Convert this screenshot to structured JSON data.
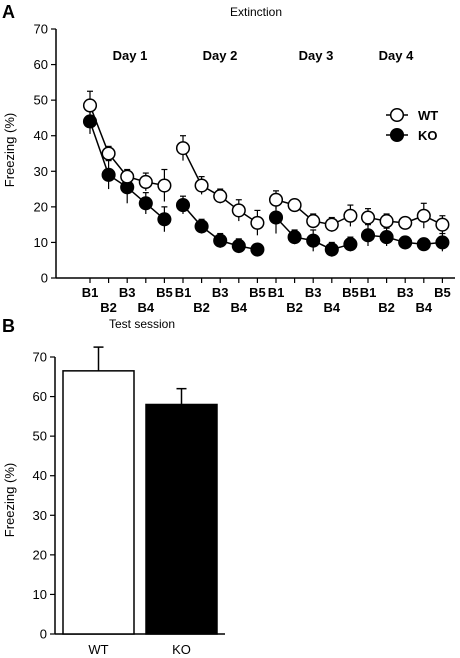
{
  "chart_data": [
    {
      "panel": "A",
      "type": "line",
      "title": "Extinction",
      "ylabel": "Freezing (%)",
      "ylim": [
        0,
        70
      ],
      "yticks": [
        0,
        10,
        20,
        30,
        40,
        50,
        60,
        70
      ],
      "days": [
        {
          "label": "Day 1",
          "blocks": [
            "B1",
            "B2",
            "B3",
            "B4",
            "B5"
          ]
        },
        {
          "label": "Day 2",
          "blocks": [
            "B1",
            "B2",
            "B3",
            "B4",
            "B5"
          ]
        },
        {
          "label": "Day 3",
          "blocks": [
            "B1",
            "B2",
            "B3",
            "B4",
            "B5"
          ]
        },
        {
          "label": "Day 4",
          "blocks": [
            "B1",
            "B2",
            "B3",
            "B4",
            "B5"
          ]
        }
      ],
      "legend_position": "right",
      "series": [
        {
          "name": "WT",
          "marker": "open-circle",
          "values": [
            [
              48.5,
              35,
              28.5,
              27,
              26
            ],
            [
              36.5,
              26,
              23,
              19,
              15.5
            ],
            [
              22,
              20.5,
              16,
              15,
              17.5
            ],
            [
              17,
              16,
              15.5,
              17.5,
              15
            ]
          ],
          "errors": [
            [
              4,
              2,
              2,
              2.5,
              4.5
            ],
            [
              3.5,
              2.5,
              2,
              3,
              3.5
            ],
            [
              2.5,
              1.5,
              2,
              2,
              3
            ],
            [
              2.5,
              2,
              1.5,
              3.5,
              2.5
            ]
          ]
        },
        {
          "name": "KO",
          "marker": "filled-circle",
          "values": [
            [
              44,
              29,
              25.5,
              21,
              16.5
            ],
            [
              20.5,
              14.5,
              10.5,
              9,
              8
            ],
            [
              17,
              11.5,
              10.5,
              8,
              9.5
            ],
            [
              12,
              11.5,
              10,
              9.5,
              10
            ]
          ],
          "errors": [
            [
              3.5,
              4,
              4.5,
              3,
              3.5
            ],
            [
              2.5,
              2,
              2,
              2,
              1.5
            ],
            [
              4.5,
              2,
              3,
              2,
              2
            ],
            [
              3,
              2.5,
              1.5,
              1.5,
              2.5
            ]
          ]
        }
      ]
    },
    {
      "panel": "B",
      "type": "bar",
      "title": "Test session",
      "ylabel": "Freezing (%)",
      "ylim": [
        0,
        70
      ],
      "yticks": [
        0,
        10,
        20,
        30,
        40,
        50,
        60,
        70
      ],
      "categories": [
        "WT",
        "KO"
      ],
      "values": [
        66.5,
        58
      ],
      "errors": [
        6,
        4
      ],
      "colors": [
        "#ffffff",
        "#000000"
      ]
    }
  ]
}
